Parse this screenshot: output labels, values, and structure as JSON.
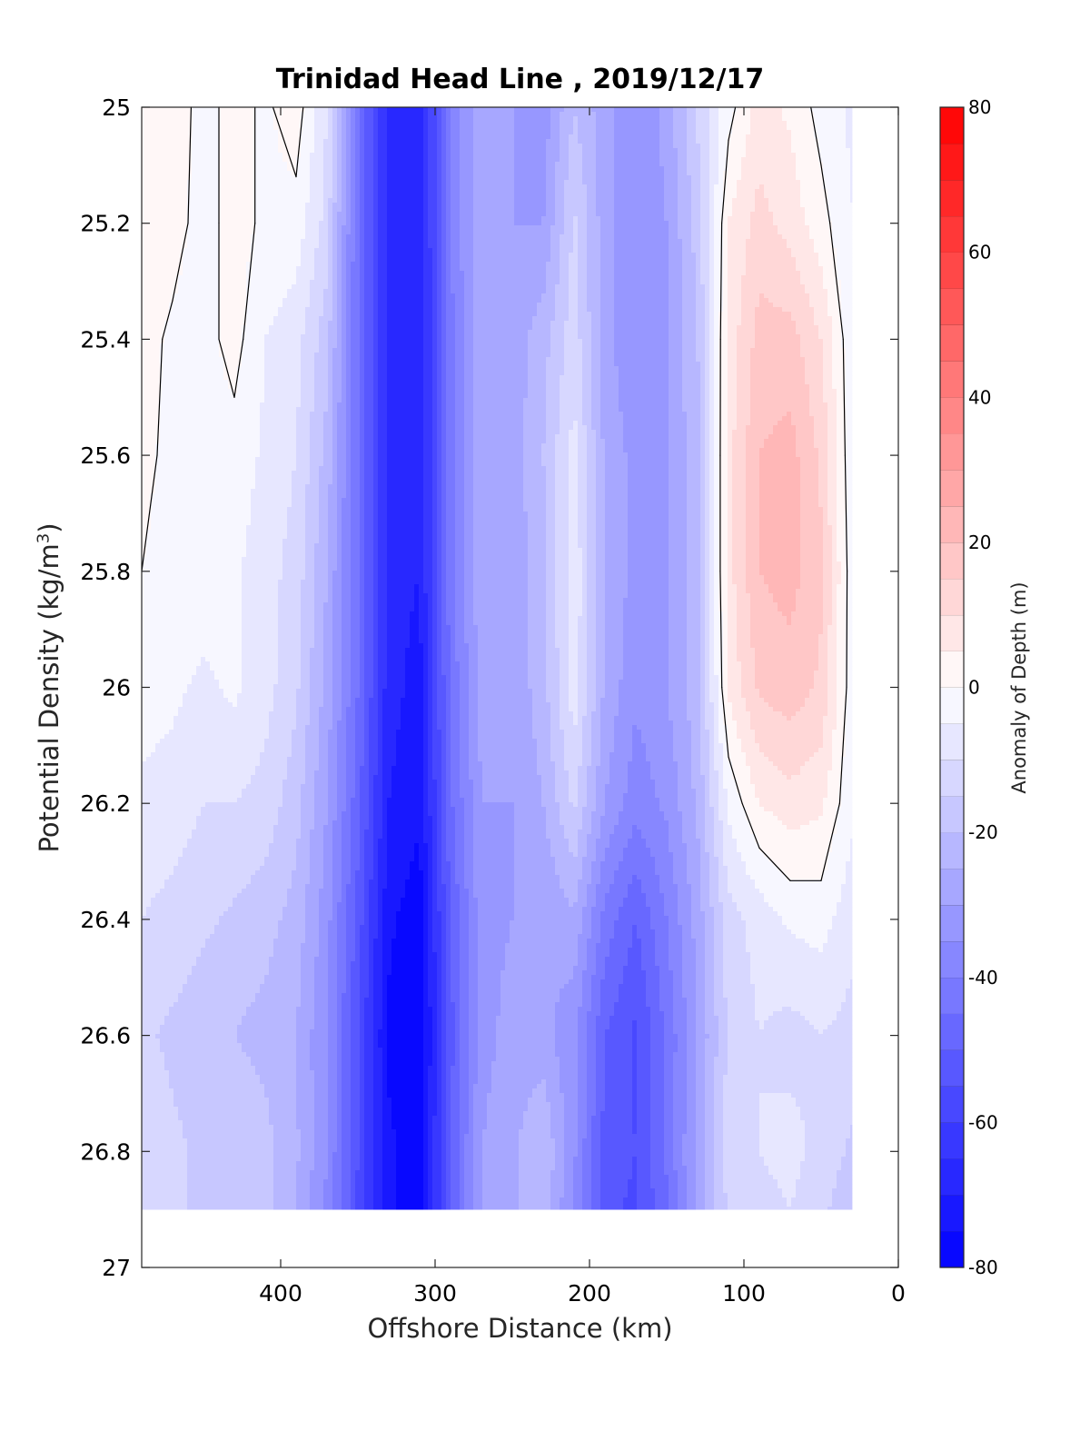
{
  "chart_data": {
    "type": "heatmap",
    "subtype": "filled-contour",
    "title": "Trinidad Head Line , 2019/12/17",
    "xlabel": "Offshore Distance (km)",
    "ylabel": "Potential Density (kg/m3)",
    "ylabel_main": "Potential Density (kg/m",
    "ylabel_sup": "3",
    "ylabel_close": ")",
    "xlim": [
      490,
      0
    ],
    "x_reversed": true,
    "ylim": [
      25,
      27
    ],
    "y_reversed": true,
    "x_ticks": [
      400,
      300,
      200,
      100,
      0
    ],
    "x_tick_labels": [
      "400",
      "300",
      "200",
      "100",
      "0"
    ],
    "y_ticks": [
      25,
      25.2,
      25.4,
      25.6,
      25.8,
      26,
      26.2,
      26.4,
      26.6,
      26.8,
      27
    ],
    "y_tick_labels": [
      "25",
      "25.2",
      "25.4",
      "25.6",
      "25.8",
      "26",
      "26.2",
      "26.4",
      "26.6",
      "26.8",
      "27"
    ],
    "data_extent": {
      "x": [
        490,
        30
      ],
      "y": [
        25,
        26.9
      ]
    },
    "colorbar": {
      "label": "Anomaly of Depth (m)",
      "limits": [
        -80,
        80
      ],
      "step": 5,
      "ticks": [
        -80,
        -60,
        -40,
        -20,
        0,
        20,
        40,
        60,
        80
      ],
      "tick_labels": [
        "-80",
        "-60",
        "-40",
        "-20",
        "0",
        "20",
        "40",
        "60",
        "80"
      ],
      "low_color": "#0000ff",
      "mid_color": "#ffffff",
      "high_color": "#ff0000"
    },
    "zero_contour_color": "#000000",
    "grid": false,
    "legend": "none",
    "x_grid": [
      490,
      470,
      450,
      430,
      410,
      390,
      370,
      350,
      330,
      310,
      290,
      270,
      250,
      230,
      210,
      190,
      170,
      150,
      130,
      110,
      90,
      70,
      50,
      30
    ],
    "y_grid": [
      25.0,
      25.2,
      25.4,
      25.6,
      25.8,
      26.0,
      26.2,
      26.4,
      26.6,
      26.8,
      26.9
    ],
    "z": [
      [
        2,
        3,
        -2,
        2,
        -1,
        3,
        -10,
        -45,
        -68,
        -70,
        -40,
        -25,
        -30,
        -33,
        -20,
        -28,
        -35,
        -28,
        -14,
        -2,
        7,
        4,
        -2,
        -6
      ],
      [
        2,
        2,
        -2,
        2,
        -1,
        -2,
        -12,
        -45,
        -68,
        -70,
        -40,
        -25,
        -30,
        -30,
        -14,
        -28,
        -35,
        -30,
        -18,
        5,
        12,
        8,
        2,
        -5
      ],
      [
        2,
        -1,
        -2,
        2,
        -5,
        -8,
        -18,
        -45,
        -68,
        -70,
        -42,
        -25,
        -28,
        -22,
        -12,
        -28,
        -35,
        -30,
        -20,
        7,
        17,
        17,
        10,
        -4
      ],
      [
        2,
        -2,
        -1,
        -2,
        -6,
        -10,
        -22,
        -45,
        -68,
        -70,
        -42,
        -25,
        -28,
        -20,
        -8,
        -26,
        -32,
        -30,
        -22,
        8,
        20,
        22,
        14,
        -4
      ],
      [
        0,
        -3,
        -2,
        -4,
        -8,
        -12,
        -25,
        -45,
        -68,
        -70,
        -42,
        -26,
        -28,
        -22,
        -6,
        -25,
        -32,
        -30,
        -22,
        8,
        20,
        22,
        16,
        -3
      ],
      [
        -3,
        -4,
        -6,
        -4,
        -8,
        -14,
        -27,
        -45,
        -68,
        -72,
        -44,
        -28,
        -29,
        -22,
        -7,
        -26,
        -34,
        -30,
        -22,
        6,
        16,
        18,
        14,
        -3
      ],
      [
        -6,
        -7,
        -10,
        -10,
        -12,
        -18,
        -30,
        -48,
        -70,
        -74,
        -46,
        -30,
        -30,
        -25,
        -14,
        -30,
        -38,
        -34,
        -24,
        -4,
        5,
        8,
        6,
        -4
      ],
      [
        -10,
        -12,
        -14,
        -16,
        -18,
        -22,
        -33,
        -52,
        -74,
        -78,
        -50,
        -32,
        -30,
        -30,
        -26,
        -42,
        -50,
        -40,
        -28,
        -12,
        -8,
        -4,
        -3,
        -8
      ],
      [
        -14,
        -16,
        -18,
        -20,
        -22,
        -25,
        -35,
        -55,
        -76,
        -80,
        -52,
        -32,
        -28,
        -28,
        -34,
        -50,
        -56,
        -44,
        -30,
        -14,
        -10,
        -12,
        -10,
        -12
      ],
      [
        -12,
        -14,
        -16,
        -15,
        -18,
        -24,
        -35,
        -55,
        -74,
        -78,
        -50,
        -30,
        -26,
        -20,
        -34,
        -52,
        -55,
        -44,
        -28,
        -12,
        -10,
        -8,
        -12,
        -16
      ],
      [
        -12,
        -14,
        -16,
        -15,
        -18,
        -25,
        -36,
        -56,
        -74,
        -78,
        -50,
        -30,
        -26,
        -22,
        -36,
        -54,
        -56,
        -46,
        -28,
        -14,
        -12,
        -10,
        -14,
        -18
      ]
    ]
  }
}
